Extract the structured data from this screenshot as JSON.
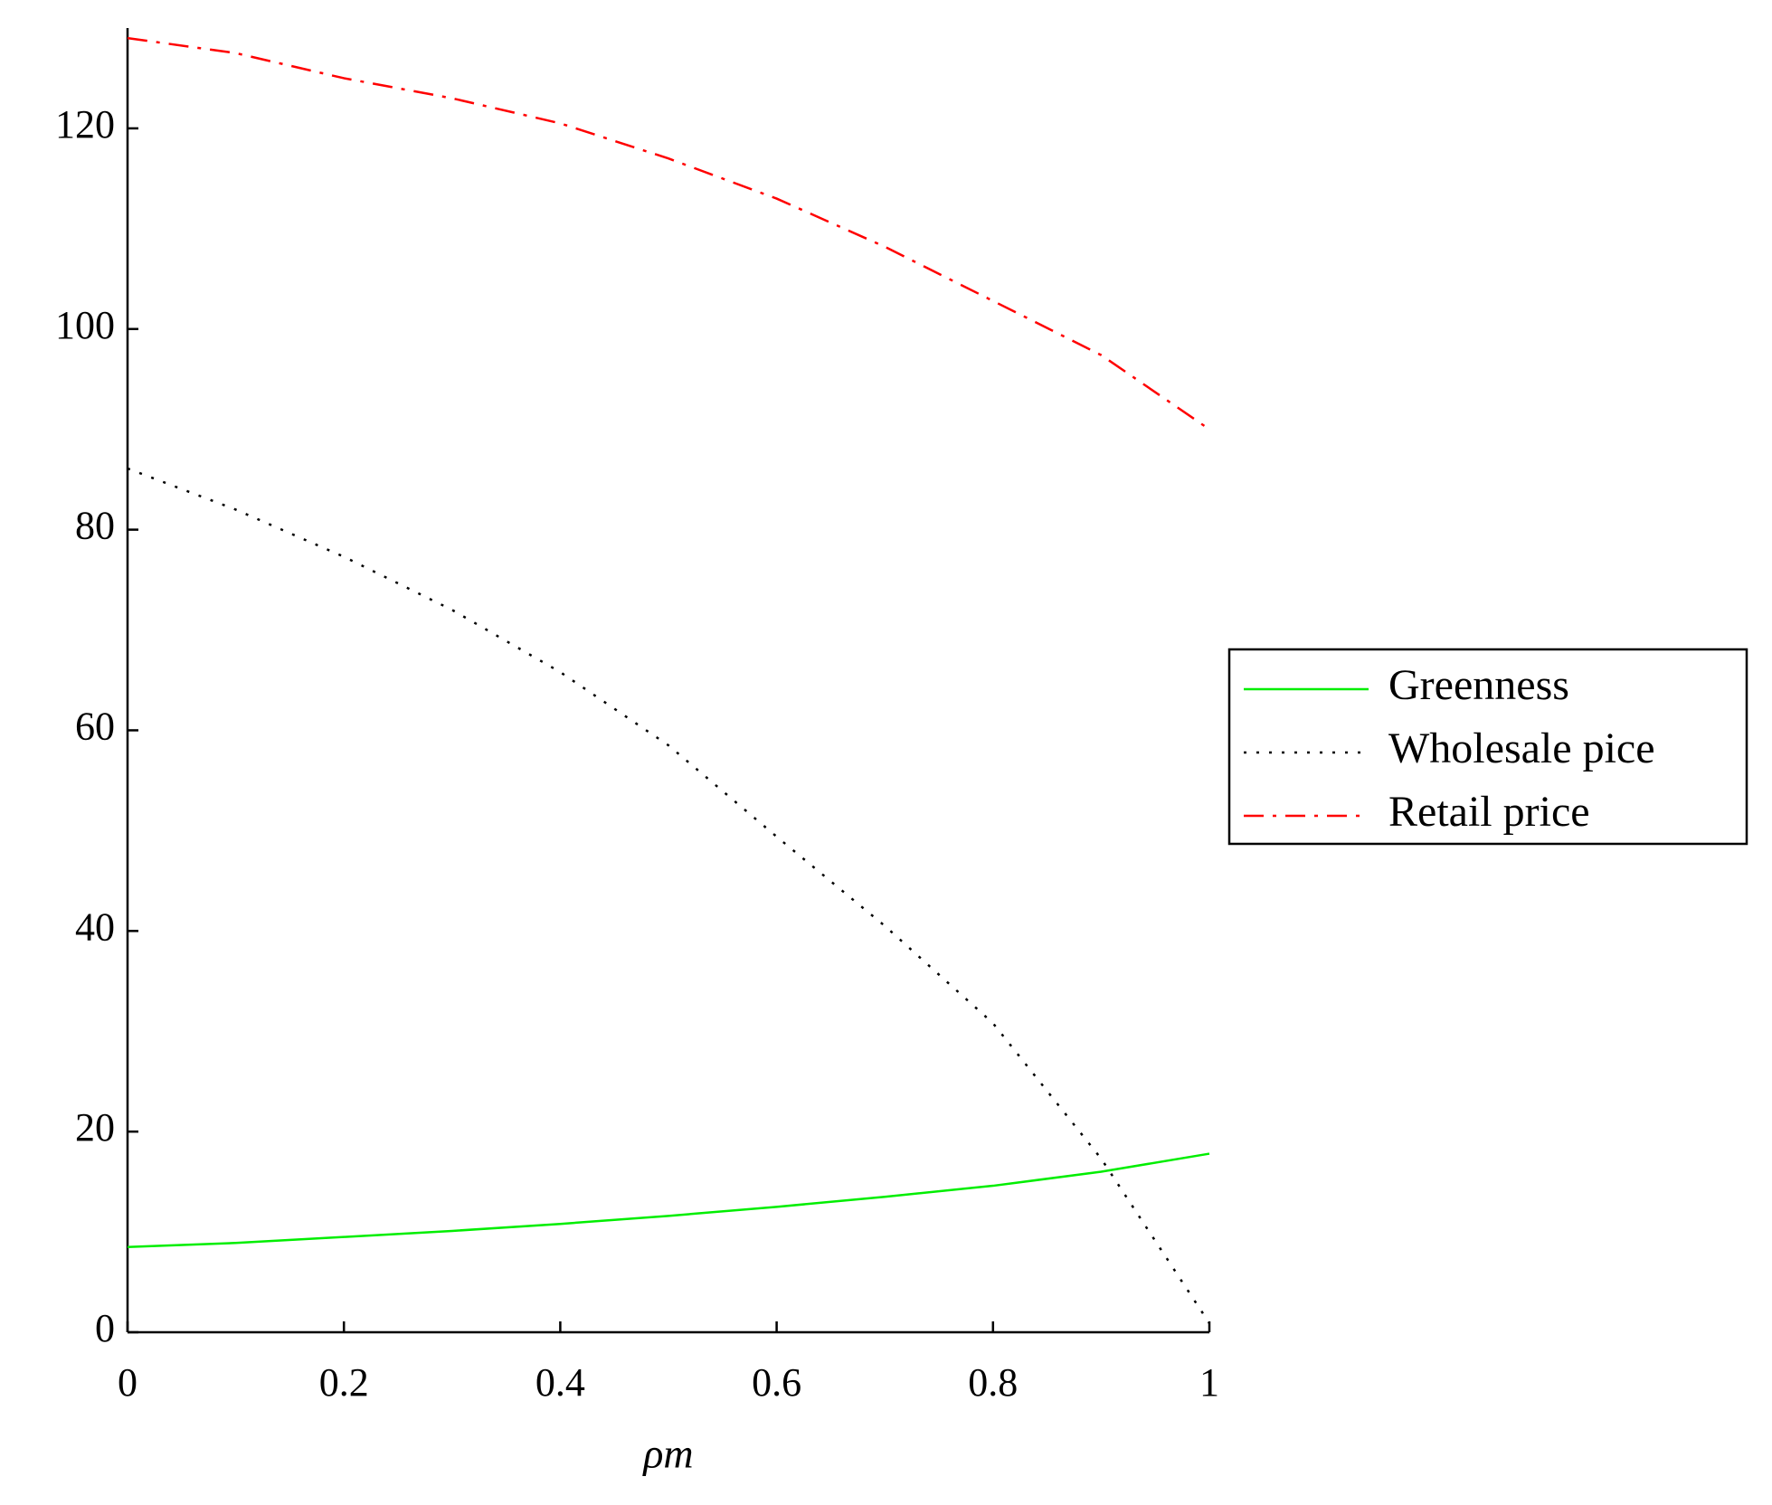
{
  "chart_data": {
    "type": "line",
    "x_label": "ρm",
    "x": [
      0,
      0.1,
      0.2,
      0.3,
      0.4,
      0.5,
      0.6,
      0.7,
      0.8,
      0.9,
      1
    ],
    "series": [
      {
        "name": "Greenness",
        "color": "#00ee00",
        "dash": "solid",
        "values": [
          8.5,
          8.9,
          9.5,
          10.1,
          10.8,
          11.6,
          12.5,
          13.5,
          14.6,
          16.0,
          17.8
        ]
      },
      {
        "name": "Wholesale pice",
        "color": "#000000",
        "dash": "dotted",
        "values": [
          86.1,
          82,
          77.3,
          72,
          65.8,
          58.5,
          49.4,
          40.5,
          30.8,
          17.3,
          0.9
        ]
      },
      {
        "name": "Retail price",
        "color": "#ff0000",
        "dash": "dashdot",
        "values": [
          129,
          127.5,
          125,
          123,
          120.5,
          117,
          113,
          108.2,
          102.8,
          97.4,
          90
        ]
      }
    ],
    "xlim": [
      0,
      1
    ],
    "xticks": [
      0,
      0.2,
      0.4,
      0.6,
      0.8,
      1
    ],
    "ylim": [
      0,
      130
    ],
    "yticks": [
      0,
      20,
      40,
      60,
      80,
      100,
      120
    ],
    "legend": "right"
  }
}
